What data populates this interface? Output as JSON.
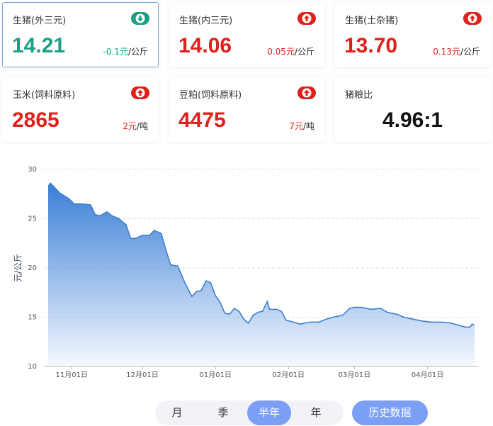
{
  "cards": [
    {
      "title": "生猪(外三元)",
      "value": "14.21",
      "change": "-0.1元",
      "unit": "/公斤",
      "trend": "down",
      "color": "#17a185",
      "selected": true
    },
    {
      "title": "生猪(内三元)",
      "value": "14.06",
      "change": "0.05元",
      "unit": "/公斤",
      "trend": "up",
      "color": "#e0201b"
    },
    {
      "title": "生猪(土杂猪)",
      "value": "13.70",
      "change": "0.13元",
      "unit": "/公斤",
      "trend": "up",
      "color": "#e0201b"
    },
    {
      "title": "玉米(饲料原料)",
      "value": "2865",
      "change": "2元",
      "unit": "/吨",
      "trend": "up",
      "color": "#e0201b"
    },
    {
      "title": "豆粕(饲料原料)",
      "value": "4475",
      "change": "7元",
      "unit": "/吨",
      "trend": "up",
      "color": "#e0201b"
    },
    {
      "title": "猪粮比",
      "value": "4.96:1",
      "color": "#111111"
    }
  ],
  "chart_data": {
    "type": "area",
    "y_label": "元/公斤",
    "color": "#3d7fd0",
    "x": [
      "10月22日",
      "10月23日",
      "10月27日",
      "10月31日",
      "11月02日",
      "11月05日",
      "11月09日",
      "11月11日",
      "11月13日",
      "11月16日",
      "11月18日",
      "11月21日",
      "11月24日",
      "11月26日",
      "11月28日",
      "12月01日",
      "12月04日",
      "12月06日",
      "12月09日",
      "12月11日",
      "12月13日",
      "12月16日",
      "12月19日",
      "12月22日",
      "12月24日",
      "12月26日",
      "12月28日",
      "12月30日",
      "01月01日",
      "01月03日",
      "01月05日",
      "01月07日",
      "01月09日",
      "01月11日",
      "01月13日",
      "01月15日",
      "01月17日",
      "01月19日",
      "01月21日",
      "01月23日",
      "01月24日",
      "01月27日",
      "01月29日",
      "01月31日",
      "02月03日",
      "02月06日",
      "02月10日",
      "02月14日",
      "02月17日",
      "02月20日",
      "02月24日",
      "02月27日",
      "03月01日",
      "03月04日",
      "03月08日",
      "03月12日",
      "03月15日",
      "03月19日",
      "03月22日",
      "03月26日",
      "03月30日",
      "04月03日",
      "04月07日",
      "04月11日",
      "04月14日",
      "04月17日",
      "04月19日",
      "04月20日",
      "04月21日"
    ],
    "values": [
      28.3,
      28.6,
      27.6,
      27.0,
      26.5,
      26.5,
      26.4,
      25.4,
      25.3,
      25.7,
      25.3,
      25.0,
      24.4,
      23.0,
      23.0,
      23.3,
      23.3,
      23.8,
      23.5,
      21.8,
      20.3,
      20.2,
      18.5,
      17.1,
      17.6,
      17.7,
      18.7,
      18.5,
      17.2,
      16.5,
      15.4,
      15.3,
      15.9,
      15.6,
      14.8,
      14.4,
      15.2,
      15.5,
      15.6,
      16.6,
      15.8,
      15.8,
      15.6,
      14.7,
      14.5,
      14.3,
      14.5,
      14.5,
      14.8,
      15.0,
      15.2,
      15.9,
      16.0,
      16.0,
      15.8,
      15.9,
      15.5,
      15.3,
      15.0,
      14.8,
      14.6,
      14.5,
      14.5,
      14.4,
      14.2,
      14.0,
      14.0,
      14.3,
      14.2
    ],
    "ylim": [
      10,
      30
    ],
    "yticks": [
      10,
      15,
      20,
      25,
      30
    ],
    "xticks": [
      "11月01日",
      "12月01日",
      "01月01日",
      "02月01日",
      "03月01日",
      "04月01日"
    ],
    "grid": true
  },
  "period_tabs": {
    "options": [
      "月",
      "季",
      "半年",
      "年"
    ],
    "selected": 2
  },
  "history_button": "历史数据"
}
